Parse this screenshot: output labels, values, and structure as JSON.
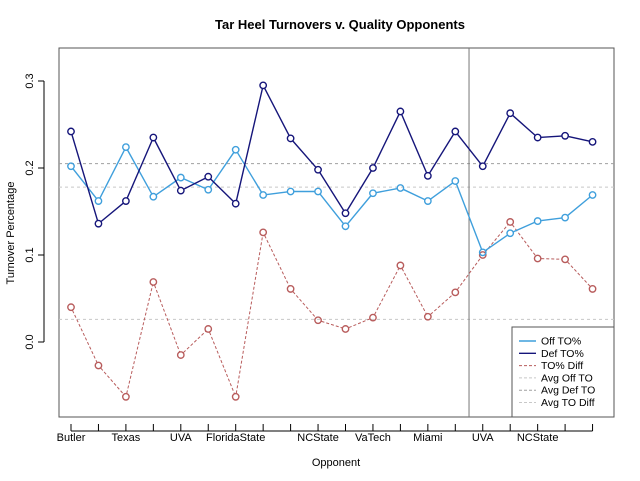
{
  "chart_data": {
    "type": "line",
    "title": "Tar Heel Turnovers v. Quality Opponents",
    "xlabel": "Opponent",
    "ylabel": "Turnover Percentage",
    "ylim": [
      -0.08,
      0.32
    ],
    "y_ticks": [
      0.0,
      0.1,
      0.2,
      0.3
    ],
    "y_tick_labels": [
      "0.0",
      "0.1",
      "0.2",
      "0.3"
    ],
    "x_tick_labels": [
      {
        "index": 0,
        "label": "Butler"
      },
      {
        "index": 2,
        "label": "Texas"
      },
      {
        "index": 4,
        "label": "UVA"
      },
      {
        "index": 6,
        "label": "FloridaState"
      },
      {
        "index": 9,
        "label": "NCState"
      },
      {
        "index": 11,
        "label": "VaTech"
      },
      {
        "index": 13,
        "label": "Miami"
      },
      {
        "index": 15,
        "label": "UVA"
      },
      {
        "index": 17,
        "label": "NCState"
      }
    ],
    "n_points": 20,
    "split_index": 14.5,
    "series": [
      {
        "name": "Off TO%",
        "color": "#3f9fdc",
        "style": "solid",
        "values": [
          0.202,
          0.162,
          0.224,
          0.167,
          0.189,
          0.175,
          0.221,
          0.169,
          0.173,
          0.173,
          0.133,
          0.171,
          0.177,
          0.162,
          0.185,
          0.103,
          0.125,
          0.139,
          0.143,
          0.169
        ]
      },
      {
        "name": "Def TO%",
        "color": "#15157a",
        "style": "solid",
        "values": [
          0.242,
          0.136,
          0.162,
          0.235,
          0.174,
          0.19,
          0.159,
          0.295,
          0.234,
          0.198,
          0.148,
          0.2,
          0.265,
          0.191,
          0.242,
          0.202,
          0.263,
          0.235,
          0.237,
          0.23
        ]
      },
      {
        "name": "TO% Diff",
        "color": "#b85c5c",
        "style": "dashed",
        "values": [
          0.04,
          -0.027,
          -0.063,
          0.069,
          -0.015,
          0.015,
          -0.063,
          0.126,
          0.061,
          0.025,
          0.015,
          0.028,
          0.088,
          0.029,
          0.057,
          0.1,
          0.138,
          0.096,
          0.095,
          0.061
        ]
      }
    ],
    "averages": [
      {
        "name": "Avg Off TO",
        "value": 0.178,
        "color": "#c8c8c8"
      },
      {
        "name": "Avg Def TO",
        "value": 0.205,
        "color": "#a0a0a0"
      },
      {
        "name": "Avg TO Diff",
        "value": 0.026,
        "color": "#c8c8c8"
      }
    ],
    "grid": false,
    "legend_position": "bottom-right"
  }
}
